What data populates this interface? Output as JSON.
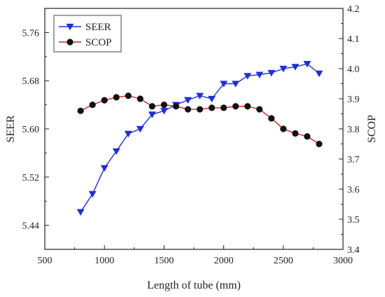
{
  "chart_data": {
    "type": "line",
    "title": "",
    "xlabel": "Length of tube (mm)",
    "ylabel_left": "SEER",
    "ylabel_right": "SCOP",
    "xlim": [
      500,
      3000
    ],
    "ylim_left": [
      5.4,
      5.8
    ],
    "ylim_right": [
      3.4,
      4.2
    ],
    "x_ticks": [
      500,
      1000,
      1500,
      2000,
      2500,
      3000
    ],
    "x_tick_labels": [
      "500",
      "1000",
      "1500",
      "2000",
      "2500",
      "3000"
    ],
    "y_left_ticks": [
      5.44,
      5.52,
      5.6,
      5.68,
      5.76
    ],
    "y_left_tick_labels": [
      "5.44",
      "5.52",
      "5.60",
      "5.68",
      "5.76"
    ],
    "y_right_ticks": [
      3.4,
      3.5,
      3.6,
      3.7,
      3.8,
      3.9,
      4.0,
      4.1,
      4.2
    ],
    "y_right_tick_labels": [
      "3.4",
      "3.5",
      "3.6",
      "3.7",
      "3.8",
      "3.9",
      "4.0",
      "4.1",
      "4.2"
    ],
    "grid": false,
    "legend_position": "top-left",
    "x": [
      800,
      900,
      1000,
      1100,
      1200,
      1300,
      1400,
      1500,
      1600,
      1700,
      1800,
      1900,
      2000,
      2100,
      2200,
      2300,
      2400,
      2500,
      2600,
      2700,
      2800
    ],
    "series": [
      {
        "name": "SEER",
        "axis": "left",
        "color": "#1f2fd6",
        "marker": "triangle-down",
        "values": [
          5.462,
          5.492,
          5.535,
          5.563,
          5.592,
          5.6,
          5.624,
          5.63,
          5.64,
          5.648,
          5.655,
          5.65,
          5.675,
          5.675,
          5.688,
          5.69,
          5.693,
          5.7,
          5.703,
          5.708,
          5.692
        ]
      },
      {
        "name": "SCOP",
        "axis": "right",
        "color": "#d62020",
        "marker": "circle",
        "values": [
          3.86,
          3.88,
          3.895,
          3.905,
          3.91,
          3.9,
          3.875,
          3.88,
          3.875,
          3.865,
          3.865,
          3.87,
          3.87,
          3.875,
          3.875,
          3.865,
          3.835,
          3.8,
          3.785,
          3.775,
          3.75
        ]
      }
    ]
  }
}
